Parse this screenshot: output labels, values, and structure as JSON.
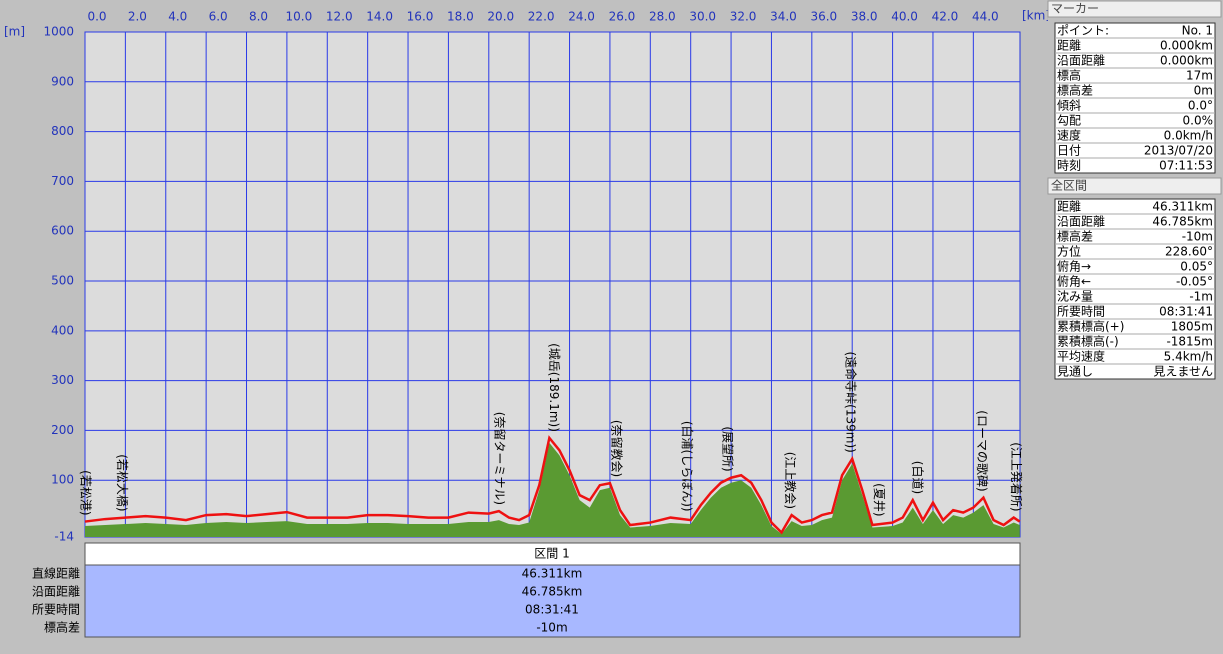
{
  "chart_data": {
    "type": "profile",
    "y_unit": "[m]",
    "x_unit": "[km]",
    "xlim": [
      0,
      46.311
    ],
    "ylim": [
      -14,
      1000
    ],
    "xticks": [
      {
        "value": 0,
        "label": "0.0"
      },
      {
        "value": 2,
        "label": "2.0"
      },
      {
        "value": 4,
        "label": "4.0"
      },
      {
        "value": 6,
        "label": "6.0"
      },
      {
        "value": 8,
        "label": "8.0"
      },
      {
        "value": 10,
        "label": "10.0"
      },
      {
        "value": 12,
        "label": "12.0"
      },
      {
        "value": 14,
        "label": "14.0"
      },
      {
        "value": 16,
        "label": "16.0"
      },
      {
        "value": 18,
        "label": "18.0"
      },
      {
        "value": 20,
        "label": "20.0"
      },
      {
        "value": 22,
        "label": "22.0"
      },
      {
        "value": 24,
        "label": "24.0"
      },
      {
        "value": 26,
        "label": "26.0"
      },
      {
        "value": 28,
        "label": "28.0"
      },
      {
        "value": 30,
        "label": "30.0"
      },
      {
        "value": 32,
        "label": "32.0"
      },
      {
        "value": 34,
        "label": "34.0"
      },
      {
        "value": 36,
        "label": "36.0"
      },
      {
        "value": 38,
        "label": "38.0"
      },
      {
        "value": 40,
        "label": "40.0"
      },
      {
        "value": 42,
        "label": "42.0"
      },
      {
        "value": 44,
        "label": "44.0"
      }
    ],
    "yticks": [
      1000,
      900,
      800,
      700,
      600,
      500,
      400,
      300,
      200,
      100,
      -14
    ],
    "grid": true,
    "x": [
      0,
      1,
      2,
      3,
      4,
      5,
      6,
      7,
      8,
      9,
      10,
      11,
      12,
      13,
      14,
      15,
      16,
      17,
      18,
      19,
      20,
      20.5,
      21,
      21.5,
      22,
      22.5,
      23,
      23.5,
      24,
      24.5,
      25,
      25.5,
      26,
      26.5,
      27,
      28,
      29,
      30,
      30.5,
      31,
      31.5,
      32,
      32.5,
      33,
      33.5,
      34,
      34.5,
      35,
      35.5,
      36,
      36.5,
      37,
      37.5,
      38,
      38.5,
      39,
      40,
      40.5,
      41,
      41.5,
      42,
      42.5,
      43,
      43.5,
      44,
      44.5,
      45,
      45.5,
      46,
      46.3
    ],
    "series": [
      {
        "color": "#5a9a32",
        "fill": true,
        "values": [
          8,
          10,
          12,
          14,
          12,
          10,
          14,
          16,
          14,
          16,
          18,
          12,
          12,
          12,
          14,
          14,
          12,
          12,
          12,
          16,
          16,
          20,
          12,
          10,
          15,
          80,
          175,
          150,
          110,
          60,
          45,
          80,
          85,
          30,
          5,
          8,
          14,
          12,
          40,
          65,
          85,
          95,
          100,
          85,
          50,
          8,
          -8,
          18,
          8,
          10,
          20,
          25,
          100,
          133,
          70,
          5,
          8,
          15,
          45,
          12,
          40,
          12,
          30,
          25,
          35,
          50,
          12,
          5,
          15,
          10
        ]
      },
      {
        "color": "#ee1111",
        "fill": false,
        "values": [
          17,
          22,
          25,
          28,
          25,
          20,
          30,
          32,
          28,
          32,
          36,
          25,
          25,
          25,
          30,
          30,
          28,
          25,
          25,
          35,
          33,
          38,
          25,
          20,
          30,
          90,
          185,
          160,
          120,
          70,
          60,
          90,
          94,
          40,
          10,
          15,
          25,
          20,
          50,
          75,
          95,
          105,
          110,
          95,
          60,
          15,
          -5,
          30,
          15,
          20,
          30,
          35,
          110,
          143,
          80,
          10,
          15,
          25,
          60,
          20,
          55,
          20,
          40,
          35,
          45,
          65,
          20,
          10,
          25,
          17
        ]
      }
    ],
    "annotations": [
      {
        "x": 0,
        "text": "(若松港)"
      },
      {
        "x": 1.8,
        "text": "(若松大橋)"
      },
      {
        "x": 20.5,
        "text": "(奈留ターミナル)"
      },
      {
        "x": 23.2,
        "text": "(城岳(189.1m))"
      },
      {
        "x": 26.3,
        "text": "(奈留教会)"
      },
      {
        "x": 29.8,
        "text": "(白浦(しらぼん))"
      },
      {
        "x": 31.8,
        "text": "(展望所)"
      },
      {
        "x": 34.9,
        "text": "(江上教会)"
      },
      {
        "x": 37.9,
        "text": "(遠命寺峠(139m))"
      },
      {
        "x": 39.3,
        "text": "(夏井)"
      },
      {
        "x": 41.2,
        "text": "(白道)"
      },
      {
        "x": 44.4,
        "text": "(ローマの歌碑)"
      },
      {
        "x": 46.1,
        "text": "(江上発着所)"
      }
    ]
  },
  "section": {
    "header": "区間 1",
    "rows": [
      [
        "直線距離",
        "46.311km"
      ],
      [
        "沿面距離",
        "46.785km"
      ],
      [
        "所要時間",
        "08:31:41"
      ],
      [
        "標高差",
        "-10m"
      ]
    ]
  },
  "marker": {
    "title": "マーカー",
    "rows": [
      [
        "ポイント:",
        "No. 1"
      ],
      [
        "距離",
        "0.000km"
      ],
      [
        "沿面距離",
        "0.000km"
      ],
      [
        "標高",
        "17m"
      ],
      [
        "標高差",
        "0m"
      ],
      [
        "傾斜",
        "0.0°"
      ],
      [
        "勾配",
        "0.0%"
      ],
      [
        "速度",
        "0.0km/h"
      ],
      [
        "日付",
        "2013/07/20"
      ],
      [
        "時刻",
        "07:11:53"
      ]
    ]
  },
  "total": {
    "title": "全区間",
    "rows": [
      [
        "距離",
        "46.311km"
      ],
      [
        "沿面距離",
        "46.785km"
      ],
      [
        "標高差",
        "-10m"
      ],
      [
        "方位",
        "228.60°"
      ],
      [
        "俯角→",
        "0.05°"
      ],
      [
        "俯角←",
        "-0.05°"
      ],
      [
        "沈み量",
        "-1m"
      ],
      [
        "所要時間",
        "08:31:41"
      ],
      [
        "累積標高(+)",
        "1805m"
      ],
      [
        "累積標高(-)",
        "-1815m"
      ],
      [
        "平均速度",
        "5.4km/h"
      ],
      [
        "見通し",
        "見えません"
      ]
    ]
  }
}
